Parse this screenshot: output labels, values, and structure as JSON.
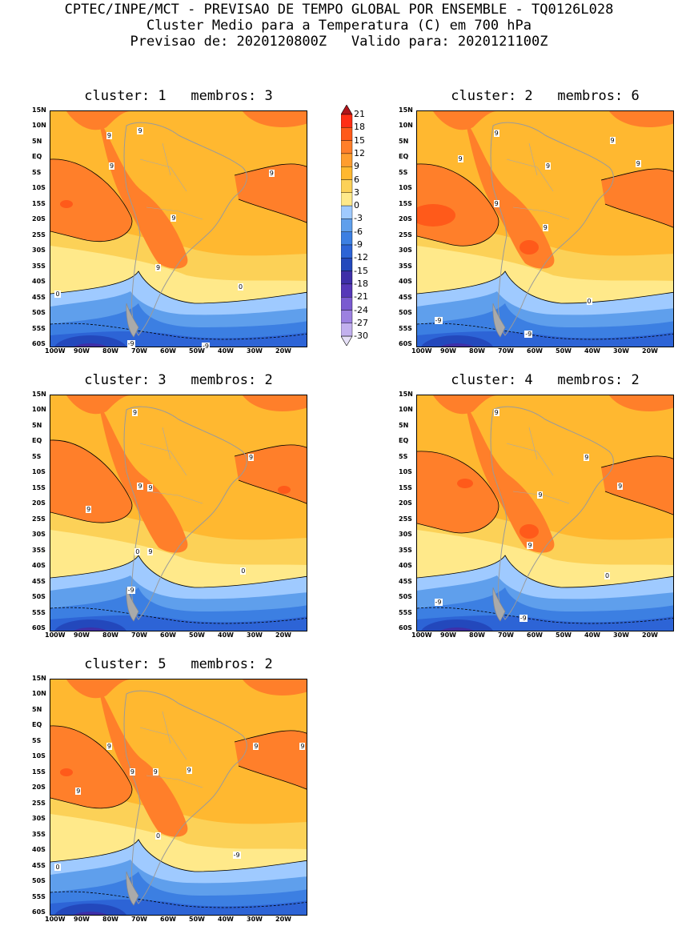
{
  "header": {
    "line1": "CPTEC/INPE/MCT - PREVISAO DE TEMPO GLOBAL POR ENSEMBLE - TQ0126L028",
    "line2": "Cluster Medio para a Temperatura (C) em 700 hPa",
    "line3": "Previsao de: 2020120800Z   Valido para: 2020121100Z"
  },
  "axes": {
    "lat_labels": [
      "15N",
      "10N",
      "5N",
      "EQ",
      "5S",
      "10S",
      "15S",
      "20S",
      "25S",
      "30S",
      "35S",
      "40S",
      "45S",
      "50S",
      "55S",
      "60S"
    ],
    "lon_labels": [
      "100W",
      "90W",
      "80W",
      "70W",
      "60W",
      "50W",
      "40W",
      "30W",
      "20W"
    ]
  },
  "colorbar": {
    "labels": [
      "21",
      "18",
      "15",
      "12",
      "9",
      "6",
      "3",
      "0",
      "-3",
      "-6",
      "-9",
      "-12",
      "-15",
      "-18",
      "-21",
      "-24",
      "-27",
      "-30"
    ],
    "colors": [
      "#ff2e15",
      "#ff5a1a",
      "#ff7f2a",
      "#ff9d2e",
      "#ffb830",
      "#fcd157",
      "#ffe98a",
      "#9fcaff",
      "#5f9fec",
      "#3c7fe2",
      "#2d64d6",
      "#2348bc",
      "#3e2fa8",
      "#5638b8",
      "#7a5bd0",
      "#9c81e0",
      "#c2b0ee"
    ],
    "top_arrow_color": "#b0141a",
    "bottom_arrow_color": "#e6e0f7"
  },
  "panels": [
    {
      "title": "cluster: 1   membros: 3",
      "contour_labels": [
        "9",
        "9",
        "9",
        "9",
        "9",
        "9",
        "0",
        "0",
        "-9",
        "-9"
      ]
    },
    {
      "title": "cluster: 2   membros: 6",
      "contour_labels": [
        "9",
        "9",
        "9",
        "9",
        "9",
        "9",
        "9",
        "0",
        "-9",
        "-9"
      ]
    },
    {
      "title": "cluster: 3   membros: 2",
      "contour_labels": [
        "9",
        "9",
        "9",
        "9",
        "9",
        "9",
        "0",
        "0",
        "-9"
      ]
    },
    {
      "title": "cluster: 4   membros: 2",
      "contour_labels": [
        "9",
        "9",
        "9",
        "9",
        "9",
        "0",
        "-9",
        "-9"
      ]
    },
    {
      "title": "cluster: 5   membros: 2",
      "contour_labels": [
        "9",
        "9",
        "9",
        "9",
        "9",
        "9",
        "9",
        "0",
        "0",
        "-9"
      ]
    }
  ]
}
